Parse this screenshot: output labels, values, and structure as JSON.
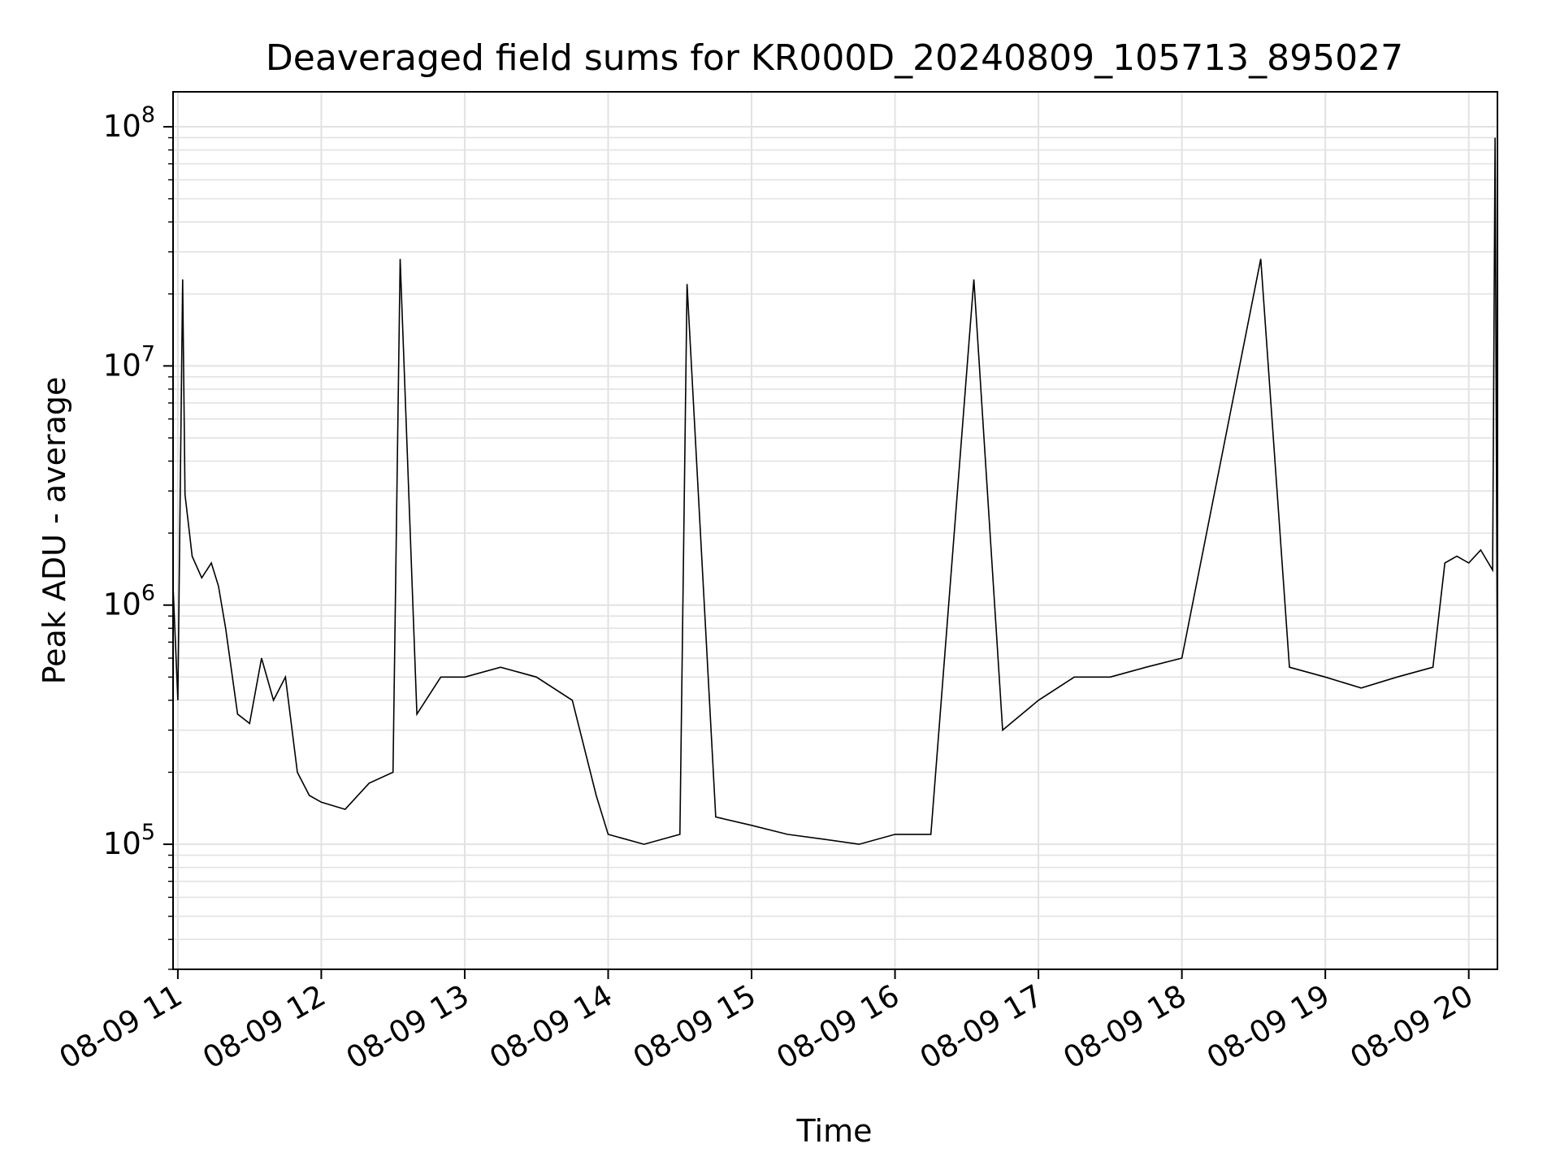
{
  "chart_data": {
    "type": "line",
    "title": "Deaveraged field sums for KR000D_20240809_105713_895027",
    "xlabel": "Time",
    "ylabel": "Peak ADU - average",
    "yscale": "log",
    "ylim": [
      30000,
      140000000
    ],
    "xlim": [
      "2024-08-09 10:58",
      "2024-08-09 20:12"
    ],
    "grid": true,
    "line_color": "#000000",
    "x_ticks": [
      {
        "label": "08-09 11",
        "value": "2024-08-09 11:00"
      },
      {
        "label": "08-09 12",
        "value": "2024-08-09 12:00"
      },
      {
        "label": "08-09 13",
        "value": "2024-08-09 13:00"
      },
      {
        "label": "08-09 14",
        "value": "2024-08-09 14:00"
      },
      {
        "label": "08-09 15",
        "value": "2024-08-09 15:00"
      },
      {
        "label": "08-09 16",
        "value": "2024-08-09 16:00"
      },
      {
        "label": "08-09 17",
        "value": "2024-08-09 17:00"
      },
      {
        "label": "08-09 18",
        "value": "2024-08-09 18:00"
      },
      {
        "label": "08-09 19",
        "value": "2024-08-09 19:00"
      },
      {
        "label": "08-09 20",
        "value": "2024-08-09 20:00"
      }
    ],
    "y_ticks": [
      {
        "base": "10",
        "exp": "5",
        "value": 100000
      },
      {
        "base": "10",
        "exp": "6",
        "value": 1000000
      },
      {
        "base": "10",
        "exp": "7",
        "value": 10000000
      },
      {
        "base": "10",
        "exp": "8",
        "value": 100000000
      }
    ],
    "series": [
      {
        "points": [
          [
            "2024-08-09 10:58",
            1200000
          ],
          [
            "2024-08-09 11:00",
            400000
          ],
          [
            "2024-08-09 11:02",
            23000000
          ],
          [
            "2024-08-09 11:03",
            2900000
          ],
          [
            "2024-08-09 11:06",
            1600000
          ],
          [
            "2024-08-09 11:10",
            1300000
          ],
          [
            "2024-08-09 11:14",
            1500000
          ],
          [
            "2024-08-09 11:17",
            1200000
          ],
          [
            "2024-08-09 11:20",
            800000
          ],
          [
            "2024-08-09 11:25",
            350000
          ],
          [
            "2024-08-09 11:30",
            320000
          ],
          [
            "2024-08-09 11:35",
            600000
          ],
          [
            "2024-08-09 11:40",
            400000
          ],
          [
            "2024-08-09 11:45",
            500000
          ],
          [
            "2024-08-09 11:50",
            200000
          ],
          [
            "2024-08-09 11:55",
            160000
          ],
          [
            "2024-08-09 12:00",
            150000
          ],
          [
            "2024-08-09 12:10",
            140000
          ],
          [
            "2024-08-09 12:20",
            180000
          ],
          [
            "2024-08-09 12:30",
            200000
          ],
          [
            "2024-08-09 12:33",
            28000000
          ],
          [
            "2024-08-09 12:40",
            350000
          ],
          [
            "2024-08-09 12:50",
            500000
          ],
          [
            "2024-08-09 13:00",
            500000
          ],
          [
            "2024-08-09 13:15",
            550000
          ],
          [
            "2024-08-09 13:30",
            500000
          ],
          [
            "2024-08-09 13:45",
            400000
          ],
          [
            "2024-08-09 13:55",
            160000
          ],
          [
            "2024-08-09 14:00",
            110000
          ],
          [
            "2024-08-09 14:15",
            100000
          ],
          [
            "2024-08-09 14:30",
            110000
          ],
          [
            "2024-08-09 14:33",
            22000000
          ],
          [
            "2024-08-09 14:45",
            130000
          ],
          [
            "2024-08-09 15:00",
            120000
          ],
          [
            "2024-08-09 15:15",
            110000
          ],
          [
            "2024-08-09 15:30",
            105000
          ],
          [
            "2024-08-09 15:45",
            100000
          ],
          [
            "2024-08-09 16:00",
            110000
          ],
          [
            "2024-08-09 16:15",
            110000
          ],
          [
            "2024-08-09 16:33",
            23000000
          ],
          [
            "2024-08-09 16:45",
            300000
          ],
          [
            "2024-08-09 17:00",
            400000
          ],
          [
            "2024-08-09 17:15",
            500000
          ],
          [
            "2024-08-09 17:30",
            500000
          ],
          [
            "2024-08-09 17:45",
            550000
          ],
          [
            "2024-08-09 18:00",
            600000
          ],
          [
            "2024-08-09 18:33",
            28000000
          ],
          [
            "2024-08-09 18:45",
            550000
          ],
          [
            "2024-08-09 19:00",
            500000
          ],
          [
            "2024-08-09 19:15",
            450000
          ],
          [
            "2024-08-09 19:30",
            500000
          ],
          [
            "2024-08-09 19:45",
            550000
          ],
          [
            "2024-08-09 19:50",
            1500000
          ],
          [
            "2024-08-09 19:55",
            1600000
          ],
          [
            "2024-08-09 20:00",
            1500000
          ],
          [
            "2024-08-09 20:05",
            1700000
          ],
          [
            "2024-08-09 20:10",
            1400000
          ],
          [
            "2024-08-09 20:11",
            90000000
          ],
          [
            "2024-08-09 20:12",
            400000
          ]
        ]
      }
    ]
  }
}
